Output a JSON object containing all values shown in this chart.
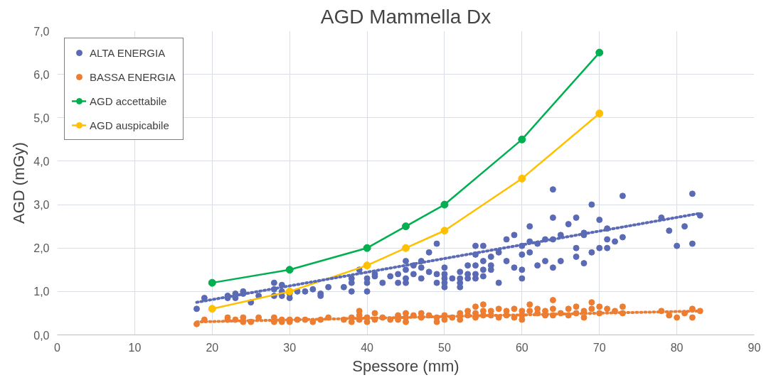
{
  "chart_data": {
    "type": "scatter",
    "title": "AGD Mammella Dx",
    "xlabel": "Spessore (mm)",
    "ylabel": "AGD (mGy)",
    "xlim": [
      0,
      90
    ],
    "xticks": [
      0,
      10,
      20,
      30,
      40,
      50,
      60,
      70,
      80,
      90
    ],
    "ylim": [
      0,
      7
    ],
    "yticks": [
      {
        "value": 0,
        "label": "0,0"
      },
      {
        "value": 1,
        "label": "1,0"
      },
      {
        "value": 2,
        "label": "2,0"
      },
      {
        "value": 3,
        "label": "3,0"
      },
      {
        "value": 4,
        "label": "4,0"
      },
      {
        "value": 5,
        "label": "5,0"
      },
      {
        "value": 6,
        "label": "6,0"
      },
      {
        "value": 7,
        "label": "7,0"
      }
    ],
    "grid": true,
    "legend": "top left",
    "series": [
      {
        "name": "ALTA ENERGIA",
        "marker": "circle",
        "color": "#5a6ab5",
        "x": [
          18,
          19,
          22,
          22,
          23,
          23,
          24,
          24,
          25,
          26,
          28,
          28,
          28,
          29,
          29,
          29,
          30,
          30,
          31,
          32,
          33,
          34,
          34,
          35,
          37,
          38,
          38,
          38,
          39,
          40,
          40,
          40,
          41,
          41,
          42,
          43,
          44,
          44,
          45,
          45,
          45,
          45,
          46,
          46,
          47,
          47,
          47,
          48,
          48,
          49,
          49,
          49,
          50,
          50,
          50,
          50,
          50,
          51,
          52,
          52,
          52,
          52,
          53,
          53,
          53,
          54,
          54,
          54,
          54,
          54,
          55,
          55,
          55,
          55,
          56,
          56,
          56,
          57,
          57,
          58,
          58,
          59,
          59,
          60,
          60,
          60,
          60,
          61,
          61,
          61,
          62,
          62,
          63,
          63,
          64,
          64,
          64,
          64,
          65,
          65,
          66,
          67,
          67,
          67,
          68,
          68,
          68,
          69,
          69,
          70,
          70,
          71,
          71,
          71,
          72,
          73,
          73,
          78,
          79,
          80,
          81,
          82,
          82,
          83
        ],
        "values": [
          0.6,
          0.85,
          0.85,
          0.9,
          0.95,
          0.85,
          0.95,
          1.0,
          0.75,
          0.9,
          0.9,
          1.05,
          1.2,
          1.15,
          1.0,
          0.9,
          0.95,
          0.85,
          1.0,
          1.0,
          1.05,
          0.95,
          0.9,
          1.1,
          1.1,
          1.2,
          1.3,
          1.0,
          1.5,
          1.2,
          1.0,
          1.3,
          1.35,
          1.4,
          1.2,
          1.35,
          1.4,
          1.2,
          1.7,
          1.5,
          1.3,
          1.2,
          1.6,
          1.4,
          1.55,
          1.7,
          1.3,
          1.9,
          1.45,
          2.1,
          1.4,
          1.2,
          1.55,
          1.4,
          1.3,
          1.2,
          1.1,
          1.3,
          1.45,
          1.3,
          1.2,
          1.1,
          1.6,
          1.4,
          1.3,
          2.05,
          1.85,
          1.6,
          1.4,
          1.3,
          2.05,
          1.7,
          1.5,
          1.35,
          1.8,
          1.6,
          1.5,
          1.2,
          1.9,
          2.2,
          1.7,
          2.3,
          1.55,
          2.05,
          1.85,
          1.5,
          1.3,
          2.5,
          2.15,
          1.9,
          1.6,
          2.1,
          2.2,
          1.7,
          3.35,
          2.7,
          2.2,
          1.55,
          1.7,
          2.3,
          2.55,
          2.7,
          2.0,
          1.8,
          2.35,
          2.3,
          1.65,
          3.0,
          1.9,
          2.65,
          2.0,
          2.45,
          2.2,
          2.0,
          2.15,
          3.2,
          2.25,
          2.7,
          2.4,
          2.05,
          2.5,
          3.25,
          2.1,
          2.75
        ]
      },
      {
        "name": "BASSA ENERGIA",
        "marker": "circle",
        "color": "#ed7d31",
        "x": [
          18,
          19,
          22,
          22,
          23,
          24,
          24,
          25,
          26,
          28,
          28,
          29,
          29,
          30,
          30,
          31,
          32,
          33,
          34,
          35,
          37,
          38,
          38,
          39,
          39,
          39,
          40,
          40,
          41,
          41,
          42,
          43,
          44,
          44,
          45,
          45,
          45,
          46,
          47,
          47,
          48,
          49,
          49,
          50,
          50,
          51,
          52,
          52,
          53,
          53,
          54,
          54,
          54,
          55,
          55,
          55,
          56,
          56,
          57,
          57,
          58,
          58,
          59,
          59,
          60,
          60,
          60,
          61,
          61,
          62,
          62,
          63,
          63,
          64,
          64,
          64,
          65,
          66,
          66,
          67,
          67,
          68,
          68,
          69,
          69,
          70,
          70,
          71,
          72,
          73,
          73,
          78,
          79,
          80,
          81,
          82,
          82,
          83
        ],
        "values": [
          0.25,
          0.35,
          0.4,
          0.35,
          0.35,
          0.4,
          0.3,
          0.3,
          0.4,
          0.4,
          0.3,
          0.35,
          0.3,
          0.3,
          0.35,
          0.35,
          0.35,
          0.3,
          0.35,
          0.4,
          0.35,
          0.4,
          0.3,
          0.45,
          0.55,
          0.35,
          0.4,
          0.3,
          0.5,
          0.35,
          0.4,
          0.35,
          0.45,
          0.35,
          0.5,
          0.4,
          0.3,
          0.45,
          0.5,
          0.4,
          0.45,
          0.4,
          0.3,
          0.45,
          0.35,
          0.4,
          0.5,
          0.35,
          0.55,
          0.45,
          0.65,
          0.5,
          0.4,
          0.7,
          0.55,
          0.45,
          0.55,
          0.45,
          0.4,
          0.6,
          0.55,
          0.45,
          0.6,
          0.4,
          0.55,
          0.45,
          0.35,
          0.7,
          0.55,
          0.6,
          0.5,
          0.55,
          0.45,
          0.8,
          0.6,
          0.45,
          0.5,
          0.6,
          0.45,
          0.65,
          0.5,
          0.55,
          0.4,
          0.75,
          0.6,
          0.65,
          0.5,
          0.6,
          0.55,
          0.65,
          0.5,
          0.55,
          0.45,
          0.4,
          0.5,
          0.6,
          0.4,
          0.55
        ]
      },
      {
        "name": "AGD accettabile",
        "type": "line",
        "marker": "circle",
        "line_style": "solid",
        "color": "#00b050",
        "x": [
          20,
          30,
          40,
          45,
          50,
          60,
          70
        ],
        "values": [
          1.2,
          1.5,
          2.0,
          2.5,
          3.0,
          4.5,
          6.5
        ]
      },
      {
        "name": "AGD auspicabile",
        "type": "line",
        "marker": "circle",
        "line_style": "solid",
        "color": "#ffc000",
        "x": [
          20,
          30,
          40,
          45,
          50,
          60,
          70
        ],
        "values": [
          0.6,
          1.0,
          1.6,
          2.0,
          2.4,
          3.6,
          5.1
        ]
      },
      {
        "type": "line",
        "marker": "none",
        "line_style": "dotted",
        "color": "#5a6ab5",
        "x": [
          18,
          83
        ],
        "values": [
          0.75,
          2.8
        ]
      },
      {
        "type": "line",
        "marker": "none",
        "line_style": "dotted",
        "color": "#ed7d31",
        "x": [
          18,
          83
        ],
        "values": [
          0.3,
          0.55
        ]
      }
    ]
  }
}
